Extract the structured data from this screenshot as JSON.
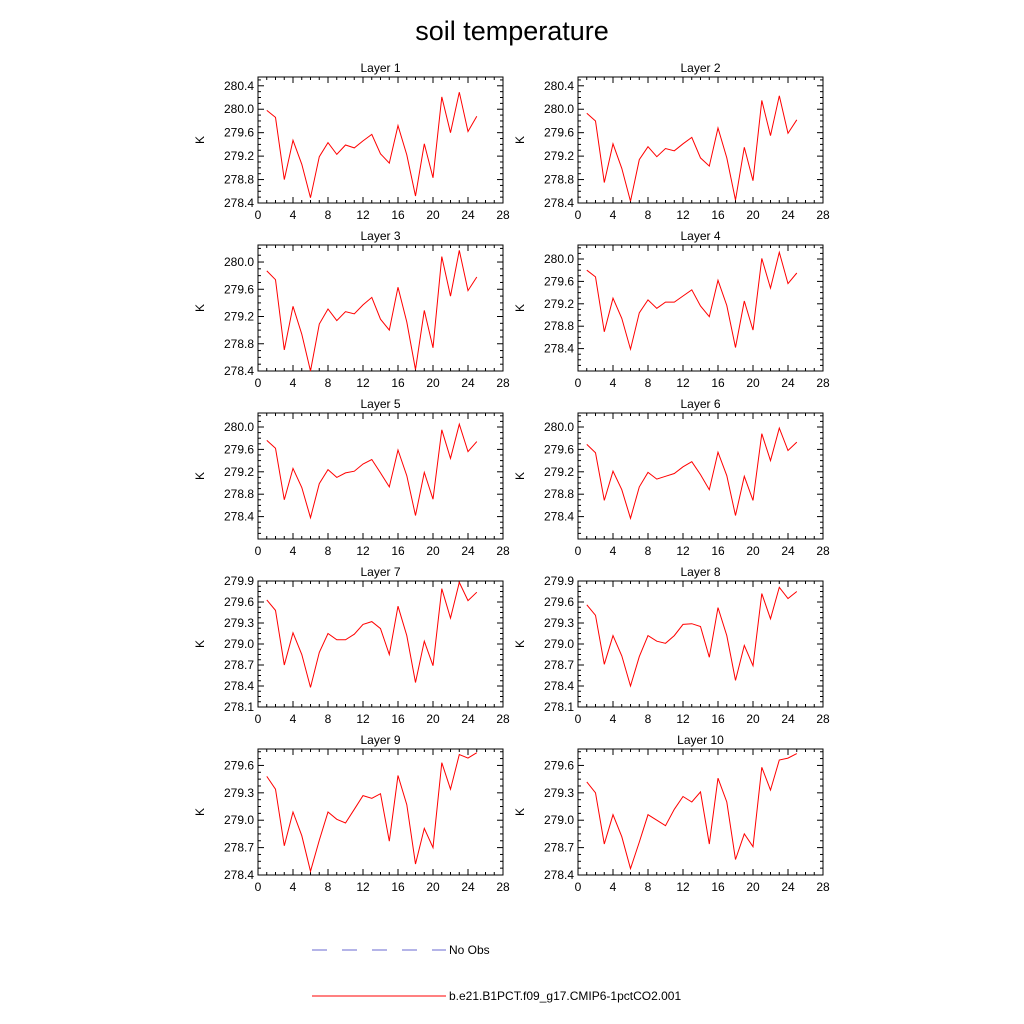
{
  "figure_title": "soil temperature",
  "legend": [
    {
      "label": "No Obs",
      "style": "dashed",
      "color": "#6a6ad0"
    },
    {
      "label": "b.e21.B1PCT.f09_g17.CMIP6-1pctCO2.001",
      "style": "solid",
      "color": "#ff0000"
    }
  ],
  "chart_data": [
    {
      "type": "line",
      "title": "Layer 1",
      "ylabel": "K",
      "xlim": [
        0,
        28
      ],
      "ylim": [
        278.4,
        280.55
      ],
      "xticks": [
        0,
        4,
        8,
        12,
        16,
        20,
        24,
        28
      ],
      "yticks": [
        278.4,
        278.8,
        279.2,
        279.6,
        280.0,
        280.4
      ],
      "ydigits": 1,
      "series": [
        {
          "color": "#ff0000",
          "x": [
            1,
            2,
            3,
            4,
            5,
            6,
            7,
            8,
            9,
            10,
            11,
            12,
            13,
            14,
            15,
            16,
            17,
            18,
            19,
            20,
            21,
            22,
            23,
            24,
            25
          ],
          "y": [
            279.98,
            279.86,
            278.8,
            279.47,
            279.06,
            278.49,
            279.19,
            279.43,
            279.23,
            279.39,
            279.34,
            279.46,
            279.57,
            279.24,
            279.08,
            279.72,
            279.22,
            278.52,
            279.41,
            278.83,
            280.21,
            279.6,
            280.29,
            279.62,
            279.88
          ]
        }
      ]
    },
    {
      "type": "line",
      "title": "Layer 2",
      "ylabel": "K",
      "xlim": [
        0,
        28
      ],
      "ylim": [
        278.4,
        280.55
      ],
      "xticks": [
        0,
        4,
        8,
        12,
        16,
        20,
        24,
        28
      ],
      "yticks": [
        278.4,
        278.8,
        279.2,
        279.6,
        280.0,
        280.4
      ],
      "ydigits": 1,
      "series": [
        {
          "color": "#ff0000",
          "x": [
            1,
            2,
            3,
            4,
            5,
            6,
            7,
            8,
            9,
            10,
            11,
            12,
            13,
            14,
            15,
            16,
            17,
            18,
            19,
            20,
            21,
            22,
            23,
            24,
            25
          ],
          "y": [
            279.93,
            279.8,
            278.75,
            279.41,
            278.99,
            278.43,
            279.14,
            279.36,
            279.19,
            279.33,
            279.29,
            279.41,
            279.52,
            279.17,
            279.03,
            279.68,
            279.17,
            278.45,
            279.35,
            278.78,
            280.15,
            279.55,
            280.23,
            279.59,
            279.82
          ]
        }
      ]
    },
    {
      "type": "line",
      "title": "Layer 3",
      "ylabel": "K",
      "xlim": [
        0,
        28
      ],
      "ylim": [
        278.4,
        280.25
      ],
      "xticks": [
        0,
        4,
        8,
        12,
        16,
        20,
        24,
        28
      ],
      "yticks": [
        278.4,
        278.8,
        279.2,
        279.6,
        280.0
      ],
      "ydigits": 1,
      "series": [
        {
          "color": "#ff0000",
          "x": [
            1,
            2,
            3,
            4,
            5,
            6,
            7,
            8,
            9,
            10,
            11,
            12,
            13,
            14,
            15,
            16,
            17,
            18,
            19,
            20,
            21,
            22,
            23,
            24,
            25
          ],
          "y": [
            279.87,
            279.74,
            278.71,
            279.35,
            278.94,
            278.4,
            279.09,
            279.31,
            279.14,
            279.27,
            279.24,
            279.37,
            279.48,
            279.16,
            279.0,
            279.63,
            279.12,
            278.42,
            279.29,
            278.74,
            280.08,
            279.5,
            280.17,
            279.58,
            279.78
          ]
        }
      ]
    },
    {
      "type": "line",
      "title": "Layer 4",
      "ylabel": "K",
      "xlim": [
        0,
        28
      ],
      "ylim": [
        278.0,
        280.25
      ],
      "xticks": [
        0,
        4,
        8,
        12,
        16,
        20,
        24,
        28
      ],
      "yticks": [
        278.4,
        278.8,
        279.2,
        279.6,
        280.0
      ],
      "ydigits": 1,
      "series": [
        {
          "color": "#ff0000",
          "x": [
            1,
            2,
            3,
            4,
            5,
            6,
            7,
            8,
            9,
            10,
            11,
            12,
            13,
            14,
            15,
            16,
            17,
            18,
            19,
            20,
            21,
            22,
            23,
            24,
            25
          ],
          "y": [
            279.8,
            279.68,
            278.7,
            279.3,
            278.94,
            278.39,
            279.04,
            279.27,
            279.12,
            279.23,
            279.23,
            279.34,
            279.45,
            279.16,
            278.97,
            279.62,
            279.17,
            278.42,
            279.25,
            278.73,
            280.01,
            279.48,
            280.12,
            279.56,
            279.75
          ]
        }
      ]
    },
    {
      "type": "line",
      "title": "Layer 5",
      "ylabel": "K",
      "xlim": [
        0,
        28
      ],
      "ylim": [
        278.0,
        280.25
      ],
      "xticks": [
        0,
        4,
        8,
        12,
        16,
        20,
        24,
        28
      ],
      "yticks": [
        278.4,
        278.8,
        279.2,
        279.6,
        280.0
      ],
      "ydigits": 1,
      "series": [
        {
          "color": "#ff0000",
          "x": [
            1,
            2,
            3,
            4,
            5,
            6,
            7,
            8,
            9,
            10,
            11,
            12,
            13,
            14,
            15,
            16,
            17,
            18,
            19,
            20,
            21,
            22,
            23,
            24,
            25
          ],
          "y": [
            279.76,
            279.62,
            278.7,
            279.26,
            278.92,
            278.38,
            278.99,
            279.24,
            279.1,
            279.18,
            279.21,
            279.34,
            279.42,
            279.18,
            278.93,
            279.59,
            279.13,
            278.42,
            279.19,
            278.71,
            279.95,
            279.44,
            280.05,
            279.56,
            279.74
          ]
        }
      ]
    },
    {
      "type": "line",
      "title": "Layer 6",
      "ylabel": "K",
      "xlim": [
        0,
        28
      ],
      "ylim": [
        278.0,
        280.25
      ],
      "xticks": [
        0,
        4,
        8,
        12,
        16,
        20,
        24,
        28
      ],
      "yticks": [
        278.4,
        278.8,
        279.2,
        279.6,
        280.0
      ],
      "ydigits": 1,
      "series": [
        {
          "color": "#ff0000",
          "x": [
            1,
            2,
            3,
            4,
            5,
            6,
            7,
            8,
            9,
            10,
            11,
            12,
            13,
            14,
            15,
            16,
            17,
            18,
            19,
            20,
            21,
            22,
            23,
            24,
            25
          ],
          "y": [
            279.69,
            279.54,
            278.69,
            279.21,
            278.88,
            278.37,
            278.93,
            279.19,
            279.07,
            279.12,
            279.17,
            279.29,
            279.38,
            279.15,
            278.88,
            279.55,
            279.13,
            278.42,
            279.12,
            278.69,
            279.88,
            279.4,
            279.98,
            279.58,
            279.73
          ]
        }
      ]
    },
    {
      "type": "line",
      "title": "Layer 7",
      "ylabel": "K",
      "xlim": [
        0,
        28
      ],
      "ylim": [
        278.1,
        279.9
      ],
      "xticks": [
        0,
        4,
        8,
        12,
        16,
        20,
        24,
        28
      ],
      "yticks": [
        278.1,
        278.4,
        278.7,
        279.0,
        279.3,
        279.6,
        279.9
      ],
      "ydigits": 1,
      "series": [
        {
          "color": "#ff0000",
          "x": [
            1,
            2,
            3,
            4,
            5,
            6,
            7,
            8,
            9,
            10,
            11,
            12,
            13,
            14,
            15,
            16,
            17,
            18,
            19,
            20,
            21,
            22,
            23,
            24,
            25
          ],
          "y": [
            279.63,
            279.48,
            278.7,
            279.16,
            278.85,
            278.38,
            278.88,
            279.15,
            279.06,
            279.06,
            279.14,
            279.28,
            279.32,
            279.22,
            278.85,
            279.54,
            279.12,
            278.45,
            279.04,
            278.69,
            279.79,
            279.37,
            279.88,
            279.62,
            279.74
          ]
        }
      ]
    },
    {
      "type": "line",
      "title": "Layer 8",
      "ylabel": "K",
      "xlim": [
        0,
        28
      ],
      "ylim": [
        278.1,
        279.9
      ],
      "xticks": [
        0,
        4,
        8,
        12,
        16,
        20,
        24,
        28
      ],
      "yticks": [
        278.1,
        278.4,
        278.7,
        279.0,
        279.3,
        279.6,
        279.9
      ],
      "ydigits": 1,
      "series": [
        {
          "color": "#ff0000",
          "x": [
            1,
            2,
            3,
            4,
            5,
            6,
            7,
            8,
            9,
            10,
            11,
            12,
            13,
            14,
            15,
            16,
            17,
            18,
            19,
            20,
            21,
            22,
            23,
            24,
            25
          ],
          "y": [
            279.56,
            279.41,
            278.71,
            279.12,
            278.83,
            278.4,
            278.82,
            279.12,
            279.04,
            279.01,
            279.12,
            279.28,
            279.29,
            279.25,
            278.81,
            279.52,
            279.12,
            278.48,
            278.98,
            278.69,
            279.72,
            279.36,
            279.81,
            279.65,
            279.75
          ]
        }
      ]
    },
    {
      "type": "line",
      "title": "Layer 9",
      "ylabel": "K",
      "xlim": [
        0,
        28
      ],
      "ylim": [
        278.4,
        279.78
      ],
      "xticks": [
        0,
        4,
        8,
        12,
        16,
        20,
        24,
        28
      ],
      "yticks": [
        278.4,
        278.7,
        279.0,
        279.3,
        279.6
      ],
      "ydigits": 1,
      "series": [
        {
          "color": "#ff0000",
          "x": [
            1,
            2,
            3,
            4,
            5,
            6,
            7,
            8,
            9,
            10,
            11,
            12,
            13,
            14,
            15,
            16,
            17,
            18,
            19,
            20,
            21,
            22,
            23,
            24,
            25
          ],
          "y": [
            279.48,
            279.34,
            278.72,
            279.09,
            278.83,
            278.44,
            278.78,
            279.09,
            279.01,
            278.97,
            279.12,
            279.27,
            279.24,
            279.29,
            278.77,
            279.49,
            279.17,
            278.52,
            278.91,
            278.7,
            279.63,
            279.34,
            279.72,
            279.68,
            279.74
          ]
        }
      ]
    },
    {
      "type": "line",
      "title": "Layer 10",
      "ylabel": "K",
      "xlim": [
        0,
        28
      ],
      "ylim": [
        278.4,
        279.78
      ],
      "xticks": [
        0,
        4,
        8,
        12,
        16,
        20,
        24,
        28
      ],
      "yticks": [
        278.4,
        278.7,
        279.0,
        279.3,
        279.6
      ],
      "ydigits": 1,
      "series": [
        {
          "color": "#ff0000",
          "x": [
            1,
            2,
            3,
            4,
            5,
            6,
            7,
            8,
            9,
            10,
            11,
            12,
            13,
            14,
            15,
            16,
            17,
            18,
            19,
            20,
            21,
            22,
            23,
            24,
            25
          ],
          "y": [
            279.42,
            279.3,
            278.74,
            279.06,
            278.82,
            278.47,
            278.76,
            279.06,
            279.0,
            278.94,
            279.12,
            279.26,
            279.2,
            279.31,
            278.74,
            279.46,
            279.2,
            278.57,
            278.85,
            278.71,
            279.58,
            279.33,
            279.66,
            279.68,
            279.73
          ]
        }
      ]
    }
  ]
}
